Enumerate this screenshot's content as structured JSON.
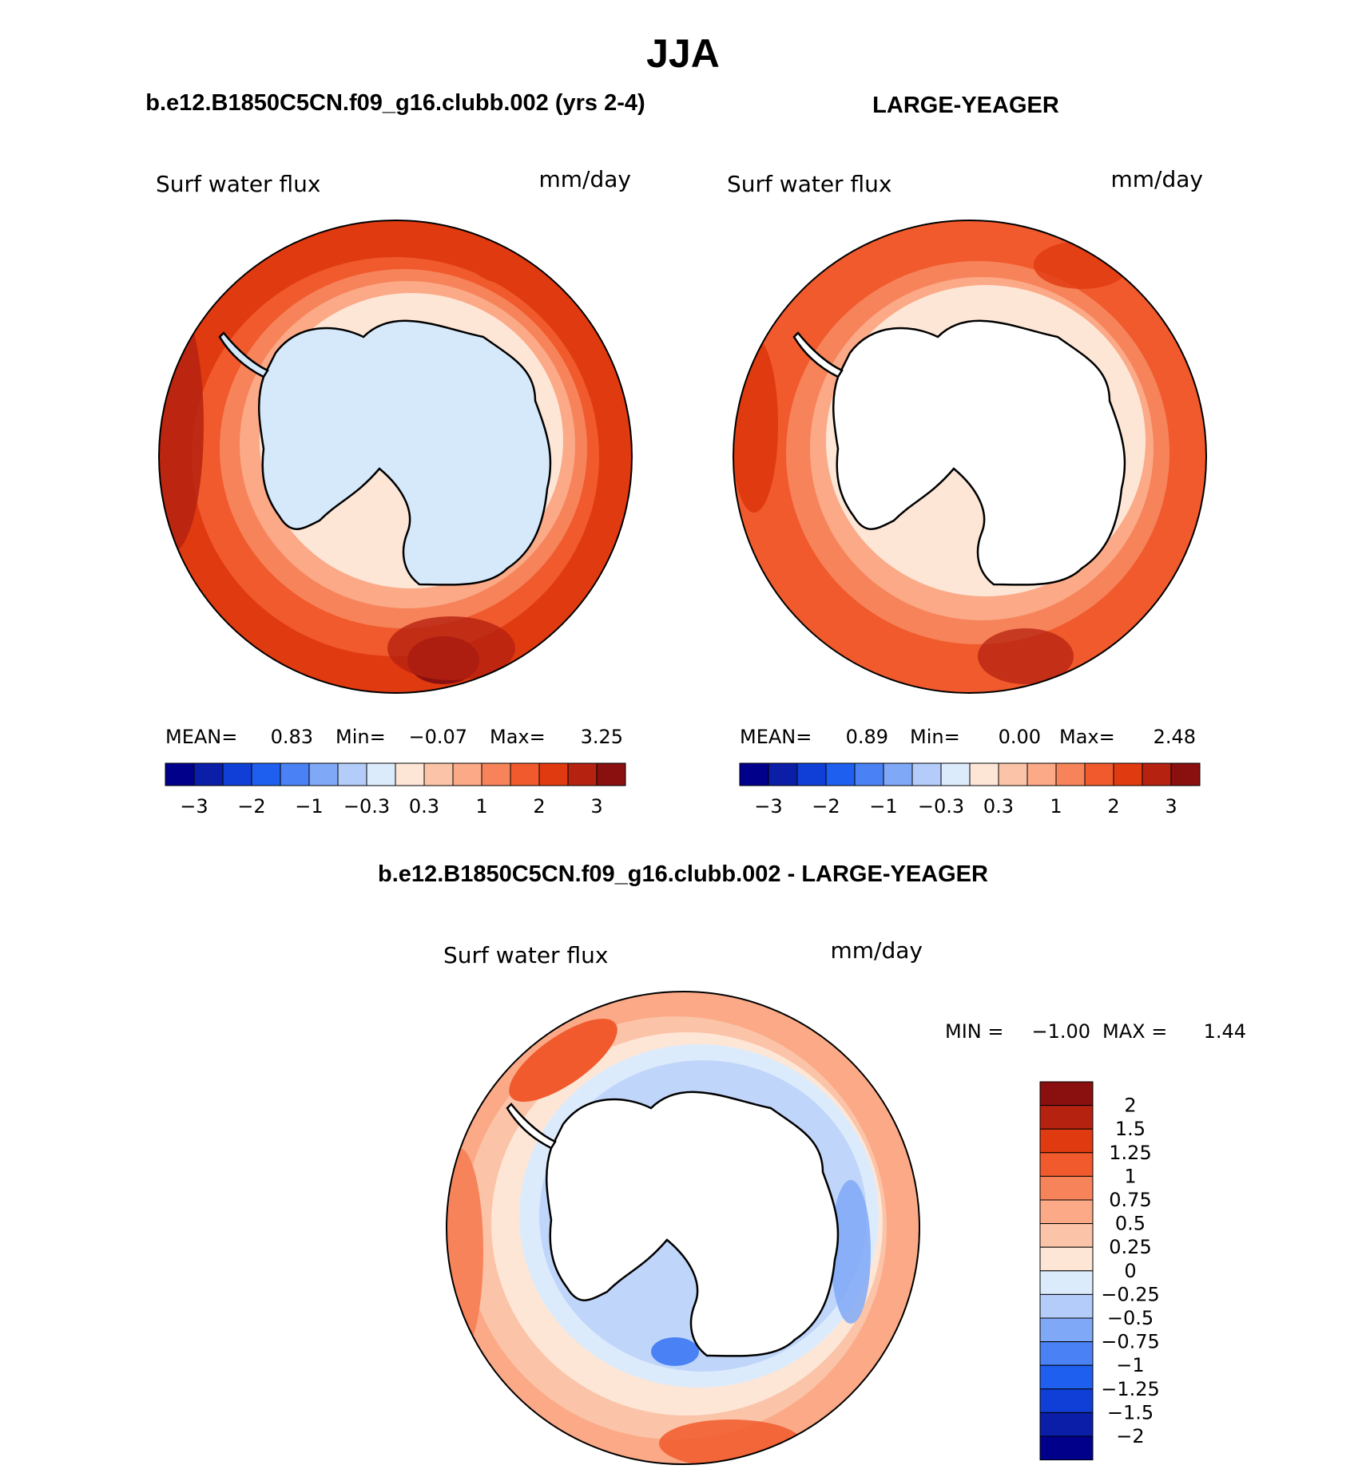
{
  "title": "JJA",
  "panels": [
    {
      "id": "model",
      "heading": "b.e12.B1850C5CN.f09_g16.clubb.002 (yrs 2-4)",
      "variable": "Surf water flux",
      "units": "mm/day",
      "stats": {
        "mean_label": "MEAN=",
        "mean": "0.83",
        "min_label": "Min=",
        "min": "−0.07",
        "max_label": "Max=",
        "max": "3.25"
      },
      "rings": [
        {
          "value": 2.5,
          "color": "#e03a10"
        },
        {
          "value": 1.5,
          "color": "#f05a2c"
        },
        {
          "value": 0.8,
          "color": "#f7835a"
        },
        {
          "value": 0.6,
          "color": "#fba987"
        },
        {
          "value": 0.2,
          "color": "#fde6d6"
        }
      ],
      "blobs": [
        {
          "value": 3.25,
          "color": "#8a0f0f"
        },
        {
          "value": 2.8,
          "color": "#b52210"
        },
        {
          "value": 2.6,
          "color": "#b52210"
        }
      ],
      "continent_fill": "#d6e9fb"
    },
    {
      "id": "obs",
      "heading": "LARGE-YEAGER",
      "variable": "Surf water flux",
      "units": "mm/day",
      "stats": {
        "mean_label": "MEAN=",
        "mean": "0.89",
        "min_label": "Min=",
        "min": "0.00",
        "max_label": "Max=",
        "max": "2.48"
      },
      "rings": [
        {
          "value": 1.6,
          "color": "#f05a2c"
        },
        {
          "value": 1.1,
          "color": "#f7835a"
        },
        {
          "value": 0.7,
          "color": "#fba987"
        },
        {
          "value": 0.2,
          "color": "#fde6d6"
        }
      ],
      "blobs": [
        {
          "value": 2.48,
          "color": "#b52210"
        },
        {
          "value": 2.0,
          "color": "#e03a10"
        }
      ],
      "continent_fill": "#ffffff"
    }
  ],
  "colorbar_top": {
    "colors": [
      "#00008b",
      "#0a1ea8",
      "#0f3fd6",
      "#1f5ff0",
      "#4a82f5",
      "#7fa8f7",
      "#b3ccf9",
      "#dcebfc",
      "#fde6d6",
      "#fbc4a8",
      "#fba987",
      "#f7835a",
      "#f05a2c",
      "#e03a10",
      "#b52210",
      "#8a0f0f"
    ],
    "labels": [
      "−3",
      "−2",
      "−1",
      "−0.3",
      "0.3",
      "1",
      "2",
      "3"
    ]
  },
  "difference": {
    "heading": "b.e12.B1850C5CN.f09_g16.clubb.002 - LARGE-YEAGER",
    "variable": "Surf water flux",
    "units": "mm/day",
    "stats": {
      "min_label": "MIN =",
      "min": "−1.00",
      "max_label": "MAX =",
      "max": "1.44"
    },
    "rings": [
      {
        "value": 0.3,
        "color": "#fbc4a8"
      },
      {
        "value": 0.1,
        "color": "#fde6d6"
      },
      {
        "value": -0.1,
        "color": "#dcebfc"
      },
      {
        "value": -0.4,
        "color": "#b3ccf9"
      }
    ],
    "blobs": [
      {
        "value": 1.44,
        "color": "#f05a2c"
      },
      {
        "value": 1.0,
        "color": "#f7835a"
      },
      {
        "value": -1.0,
        "color": "#4a82f5"
      },
      {
        "value": -0.6,
        "color": "#7fa8f7"
      }
    ],
    "continent_fill": "#ffffff",
    "colorbar": {
      "colors": [
        "#8a0f0f",
        "#b52210",
        "#e03a10",
        "#f05a2c",
        "#f7835a",
        "#fba987",
        "#fbc4a8",
        "#fde6d6",
        "#dcebfc",
        "#b3ccf9",
        "#7fa8f7",
        "#4a82f5",
        "#1f5ff0",
        "#0f3fd6",
        "#0a1ea8",
        "#00008b"
      ],
      "labels": [
        "2",
        "1.5",
        "1.25",
        "1",
        "0.75",
        "0.5",
        "0.25",
        "0",
        "−0.25",
        "−0.5",
        "−0.75",
        "−1",
        "−1.25",
        "−1.5",
        "−2"
      ]
    }
  }
}
